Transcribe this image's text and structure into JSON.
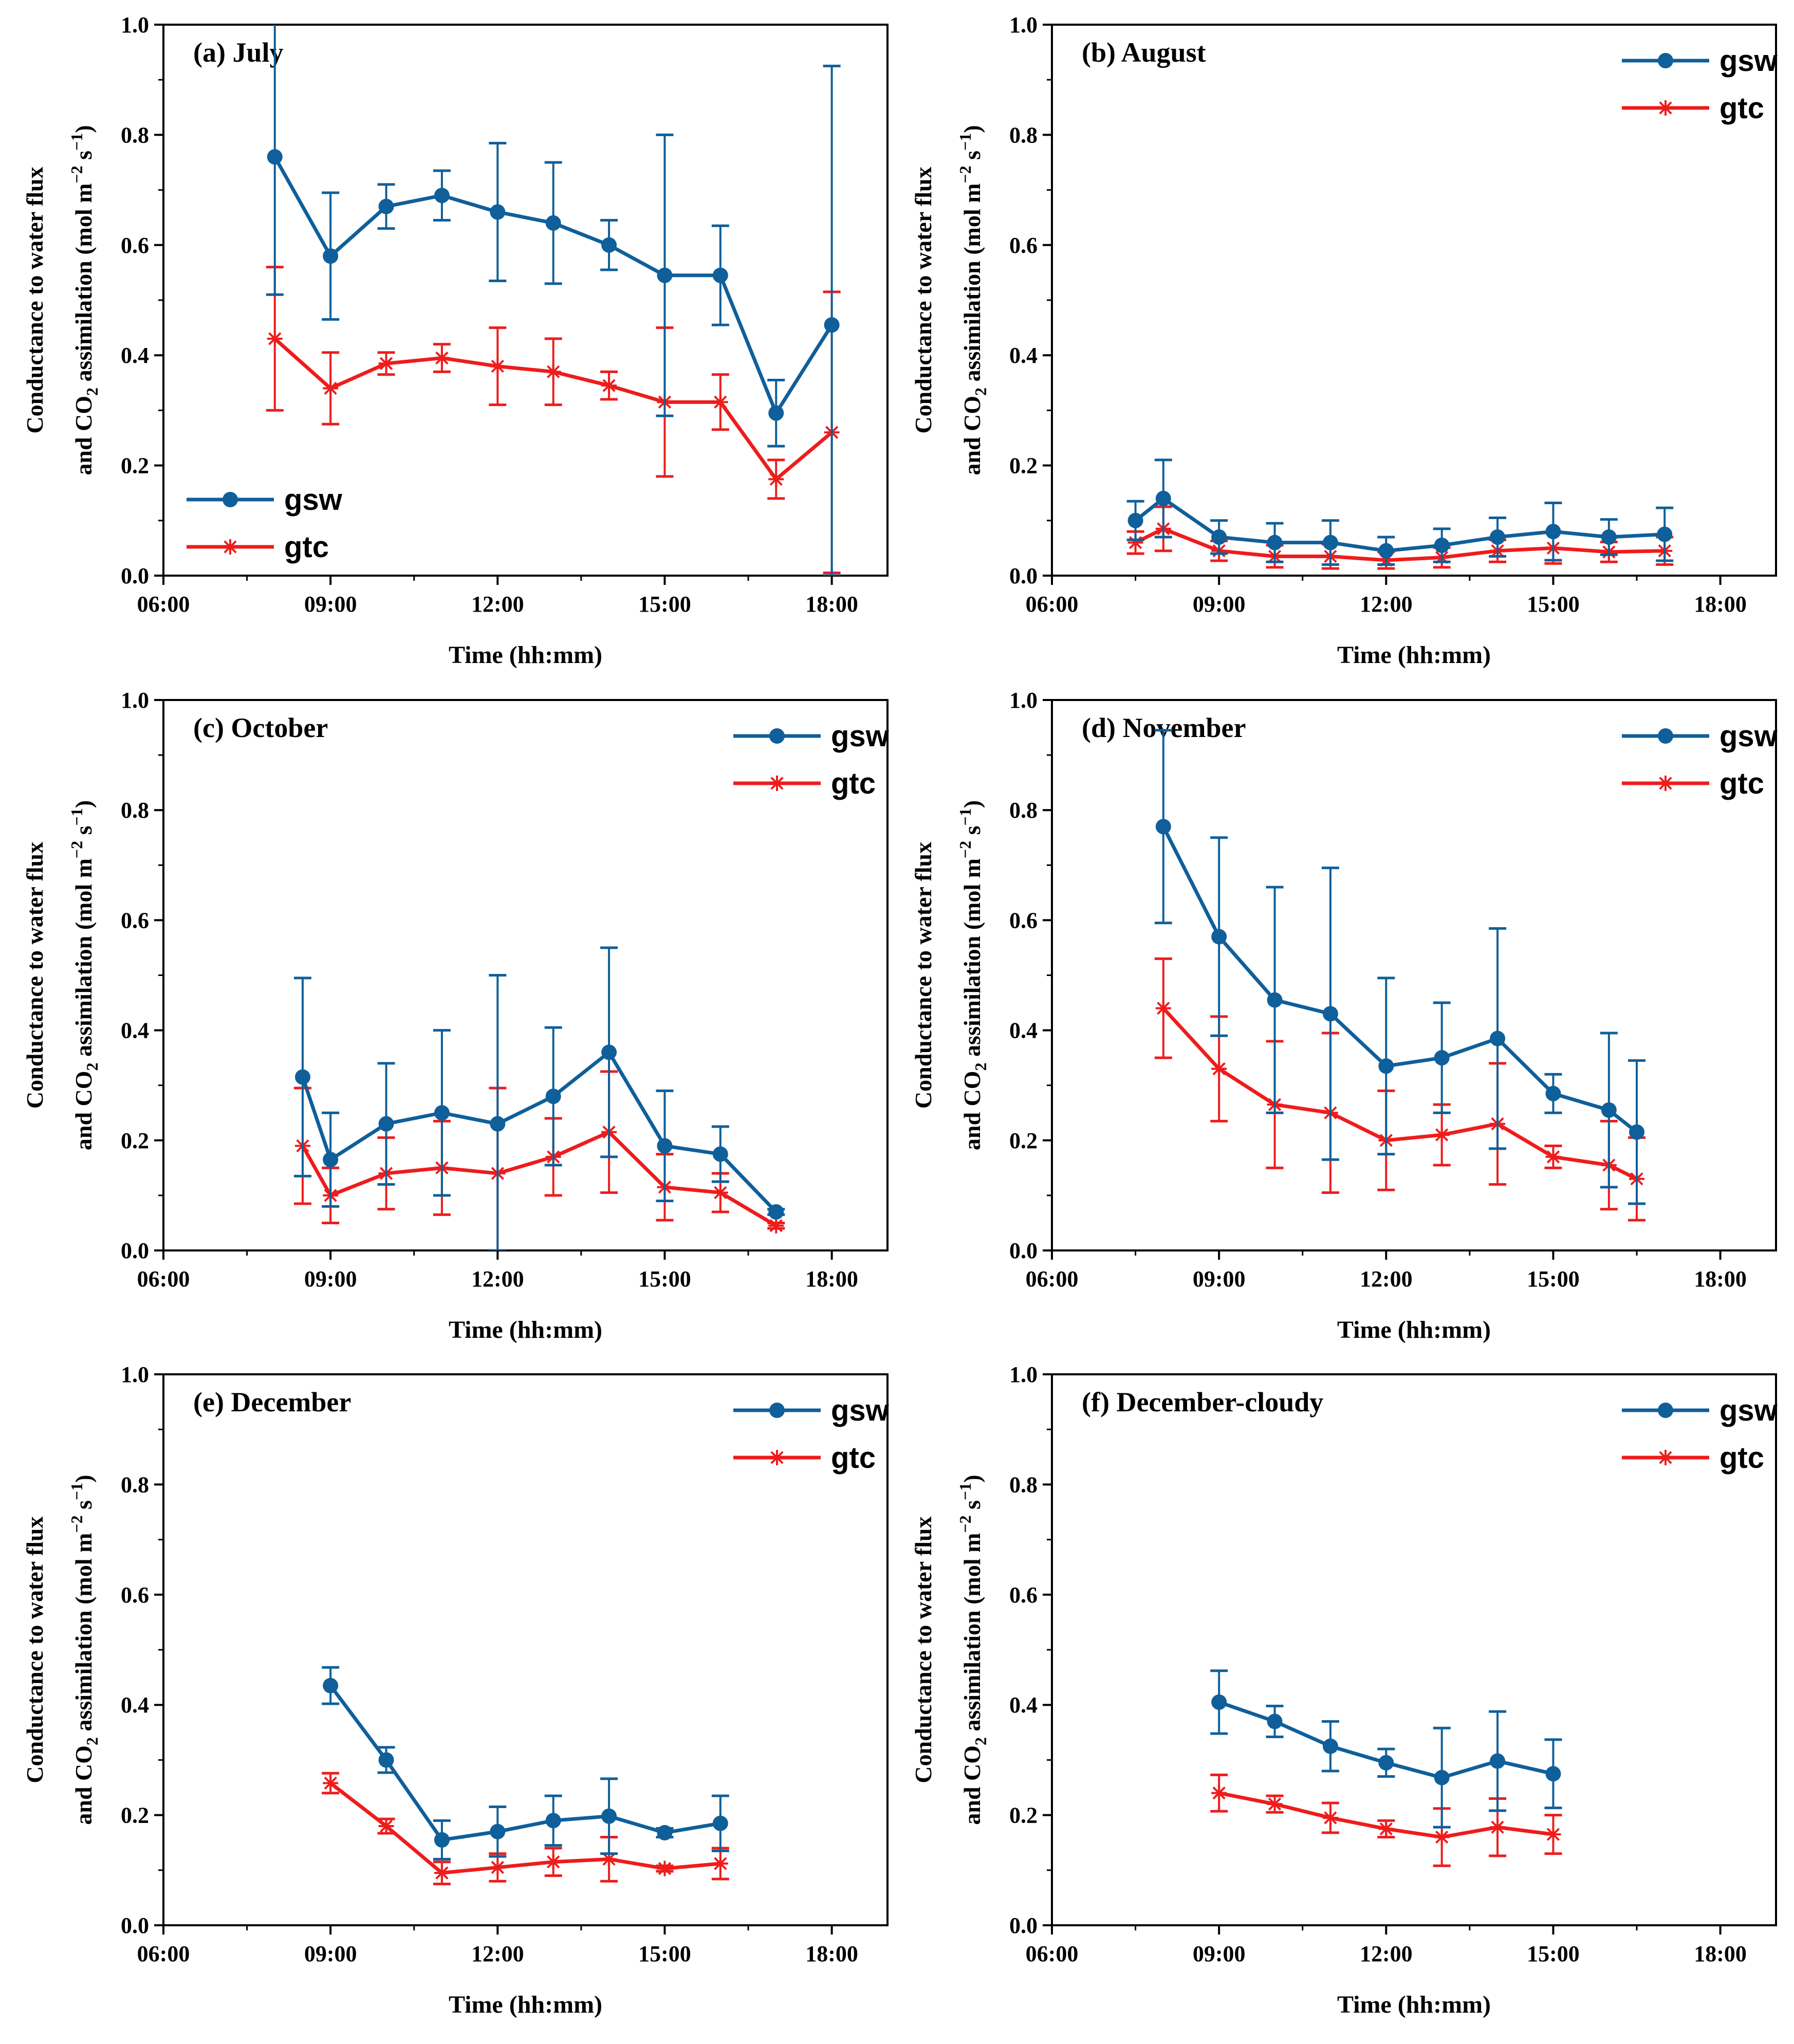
{
  "colors": {
    "gsw": "#0f5f9a",
    "gtc": "#ee1c1c",
    "axis": "#000000"
  },
  "chart_data": [
    {
      "type": "line",
      "title": "(a) July",
      "xlabel": "Time (hh:mm)",
      "ylabel_line1": "Conductance to water flux",
      "ylabel_line2": "and CO2 assimilation (mol m-2 s-1)",
      "xlim": [
        6,
        19
      ],
      "ylim": [
        0,
        1
      ],
      "xticks": [
        "06:00",
        "09:00",
        "12:00",
        "15:00",
        "18:00"
      ],
      "yticks": [
        "0.0",
        "0.2",
        "0.4",
        "0.6",
        "0.8",
        "1.0"
      ],
      "legend_position": "bottom-left",
      "series": [
        {
          "name": "gsw",
          "x": [
            8,
            9,
            10,
            11,
            12,
            13,
            14,
            15,
            16,
            17,
            18
          ],
          "y": [
            0.76,
            0.58,
            0.67,
            0.69,
            0.66,
            0.64,
            0.6,
            0.545,
            0.545,
            0.295,
            0.455
          ],
          "err": [
            0.25,
            0.115,
            0.04,
            0.045,
            0.125,
            0.11,
            0.045,
            0.255,
            0.09,
            0.06,
            0.47
          ]
        },
        {
          "name": "gtc",
          "x": [
            8,
            9,
            10,
            11,
            12,
            13,
            14,
            15,
            16,
            17,
            18
          ],
          "y": [
            0.43,
            0.34,
            0.385,
            0.395,
            0.38,
            0.37,
            0.345,
            0.315,
            0.315,
            0.175,
            0.26
          ],
          "err": [
            0.13,
            0.065,
            0.02,
            0.025,
            0.07,
            0.06,
            0.025,
            0.135,
            0.05,
            0.035,
            0.255
          ]
        }
      ]
    },
    {
      "type": "line",
      "title": "(b) August",
      "xlabel": "Time (hh:mm)",
      "ylabel_line1": "Conductance to water flux",
      "ylabel_line2": "and CO2 assimilation (mol m-2 s-1)",
      "xlim": [
        6,
        19
      ],
      "ylim": [
        0,
        1
      ],
      "xticks": [
        "06:00",
        "09:00",
        "12:00",
        "15:00",
        "18:00"
      ],
      "yticks": [
        "0.0",
        "0.2",
        "0.4",
        "0.6",
        "0.8",
        "1.0"
      ],
      "legend_position": "top-right",
      "series": [
        {
          "name": "gsw",
          "x": [
            7.5,
            8,
            9,
            10,
            11,
            12,
            13,
            14,
            15,
            16,
            17
          ],
          "y": [
            0.1,
            0.14,
            0.07,
            0.06,
            0.06,
            0.045,
            0.055,
            0.07,
            0.08,
            0.07,
            0.075
          ],
          "err": [
            0.035,
            0.07,
            0.03,
            0.035,
            0.04,
            0.025,
            0.03,
            0.035,
            0.052,
            0.032,
            0.048
          ]
        },
        {
          "name": "gtc",
          "x": [
            7.5,
            8,
            9,
            10,
            11,
            12,
            13,
            14,
            15,
            16,
            17
          ],
          "y": [
            0.06,
            0.085,
            0.045,
            0.035,
            0.035,
            0.028,
            0.033,
            0.045,
            0.05,
            0.043,
            0.045
          ],
          "err": [
            0.02,
            0.04,
            0.018,
            0.02,
            0.022,
            0.015,
            0.018,
            0.02,
            0.028,
            0.018,
            0.025
          ]
        }
      ]
    },
    {
      "type": "line",
      "title": "(c) October",
      "xlabel": "Time (hh:mm)",
      "ylabel_line1": "Conductance to water flux",
      "ylabel_line2": "and CO2 assimilation (mol m-2 s-1)",
      "xlim": [
        6,
        19
      ],
      "ylim": [
        0,
        1
      ],
      "xticks": [
        "06:00",
        "09:00",
        "12:00",
        "15:00",
        "18:00"
      ],
      "yticks": [
        "0.0",
        "0.2",
        "0.4",
        "0.6",
        "0.8",
        "1.0"
      ],
      "legend_position": "top-right",
      "series": [
        {
          "name": "gsw",
          "x": [
            8.5,
            9,
            10,
            11,
            12,
            13,
            14,
            15,
            16,
            17
          ],
          "y": [
            0.315,
            0.165,
            0.23,
            0.25,
            0.23,
            0.28,
            0.36,
            0.19,
            0.175,
            0.07
          ],
          "err": [
            0.18,
            0.085,
            0.11,
            0.15,
            0.27,
            0.125,
            0.19,
            0.1,
            0.05,
            0.005
          ]
        },
        {
          "name": "gtc",
          "x": [
            8.5,
            9,
            10,
            11,
            12,
            13,
            14,
            15,
            16,
            17
          ],
          "y": [
            0.19,
            0.1,
            0.14,
            0.15,
            0.14,
            0.17,
            0.215,
            0.115,
            0.105,
            0.045
          ],
          "err": [
            0.105,
            0.05,
            0.065,
            0.085,
            0.155,
            0.07,
            0.11,
            0.06,
            0.035,
            0.005
          ]
        }
      ]
    },
    {
      "type": "line",
      "title": "(d) November",
      "xlabel": "Time (hh:mm)",
      "ylabel_line1": "Conductance to water flux",
      "ylabel_line2": "and CO2 assimilation (mol m-2 s-1)",
      "xlim": [
        6,
        19
      ],
      "ylim": [
        0,
        1
      ],
      "xticks": [
        "06:00",
        "09:00",
        "12:00",
        "15:00",
        "18:00"
      ],
      "yticks": [
        "0.0",
        "0.2",
        "0.4",
        "0.6",
        "0.8",
        "1.0"
      ],
      "legend_position": "top-right",
      "series": [
        {
          "name": "gsw",
          "x": [
            8,
            9,
            10,
            11,
            12,
            13,
            14,
            15,
            16,
            16.5
          ],
          "y": [
            0.77,
            0.57,
            0.455,
            0.43,
            0.335,
            0.35,
            0.385,
            0.285,
            0.255,
            0.215
          ],
          "err": [
            0.175,
            0.18,
            0.205,
            0.265,
            0.16,
            0.1,
            0.2,
            0.035,
            0.14,
            0.13
          ]
        },
        {
          "name": "gtc",
          "x": [
            8,
            9,
            10,
            11,
            12,
            13,
            14,
            15,
            16,
            16.5
          ],
          "y": [
            0.44,
            0.33,
            0.265,
            0.25,
            0.2,
            0.21,
            0.23,
            0.17,
            0.155,
            0.13
          ],
          "err": [
            0.09,
            0.095,
            0.115,
            0.145,
            0.09,
            0.055,
            0.11,
            0.02,
            0.08,
            0.075
          ]
        }
      ]
    },
    {
      "type": "line",
      "title": "(e) December",
      "xlabel": "Time (hh:mm)",
      "ylabel_line1": "Conductance to water flux",
      "ylabel_line2": "and CO2 assimilation (mol m-2 s-1)",
      "xlim": [
        6,
        19
      ],
      "ylim": [
        0,
        1
      ],
      "xticks": [
        "06:00",
        "09:00",
        "12:00",
        "15:00",
        "18:00"
      ],
      "yticks": [
        "0.0",
        "0.2",
        "0.4",
        "0.6",
        "0.8",
        "1.0"
      ],
      "legend_position": "top-right",
      "series": [
        {
          "name": "gsw",
          "x": [
            9,
            10,
            11,
            12,
            13,
            14,
            15,
            16
          ],
          "y": [
            0.435,
            0.3,
            0.155,
            0.17,
            0.19,
            0.198,
            0.168,
            0.185
          ],
          "err": [
            0.033,
            0.023,
            0.035,
            0.045,
            0.045,
            0.068,
            0.008,
            0.05
          ]
        },
        {
          "name": "gtc",
          "x": [
            9,
            10,
            11,
            12,
            13,
            14,
            15,
            16
          ],
          "y": [
            0.258,
            0.18,
            0.095,
            0.105,
            0.115,
            0.12,
            0.103,
            0.112
          ],
          "err": [
            0.018,
            0.013,
            0.02,
            0.025,
            0.025,
            0.04,
            0.005,
            0.028
          ]
        }
      ]
    },
    {
      "type": "line",
      "title": "(f) December-cloudy",
      "xlabel": "Time (hh:mm)",
      "ylabel_line1": "Conductance to water flux",
      "ylabel_line2": "and CO2 assimilation (mol m-2 s-1)",
      "xlim": [
        6,
        19
      ],
      "ylim": [
        0,
        1
      ],
      "xticks": [
        "06:00",
        "09:00",
        "12:00",
        "15:00",
        "18:00"
      ],
      "yticks": [
        "0.0",
        "0.2",
        "0.4",
        "0.6",
        "0.8",
        "1.0"
      ],
      "legend_position": "top-right",
      "series": [
        {
          "name": "gsw",
          "x": [
            9,
            10,
            11,
            12,
            13,
            14,
            15
          ],
          "y": [
            0.405,
            0.37,
            0.325,
            0.295,
            0.268,
            0.298,
            0.275
          ],
          "err": [
            0.057,
            0.028,
            0.045,
            0.025,
            0.09,
            0.09,
            0.062
          ]
        },
        {
          "name": "gtc",
          "x": [
            9,
            10,
            11,
            12,
            13,
            14,
            15
          ],
          "y": [
            0.24,
            0.22,
            0.195,
            0.175,
            0.16,
            0.178,
            0.165
          ],
          "err": [
            0.033,
            0.015,
            0.027,
            0.015,
            0.052,
            0.052,
            0.035
          ]
        }
      ]
    }
  ]
}
